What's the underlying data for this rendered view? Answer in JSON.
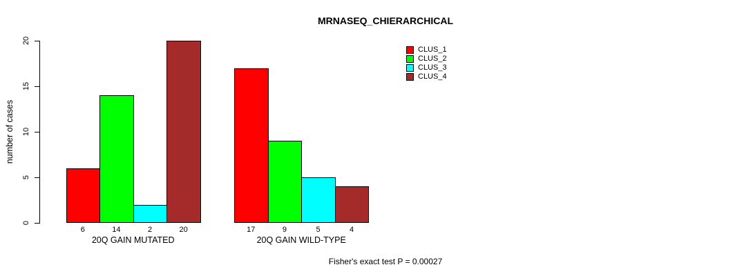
{
  "chart_data": {
    "type": "bar",
    "title": "MRNASEQ_CHIERARCHICAL",
    "ylabel": "number of cases",
    "xlabel": "",
    "caption": "Fisher's exact test P = 0.00027",
    "ylim": [
      0,
      20
    ],
    "yticks": [
      0,
      5,
      10,
      15,
      20
    ],
    "grid": false,
    "legend_position": "top-right",
    "bar_value_labels": true,
    "categories": [
      "20Q GAIN MUTATED",
      "20Q GAIN WILD-TYPE"
    ],
    "series": [
      {
        "name": "CLUS_1",
        "color": "#FF0000",
        "values": [
          6,
          17
        ]
      },
      {
        "name": "CLUS_2",
        "color": "#00FF00",
        "values": [
          14,
          9
        ]
      },
      {
        "name": "CLUS_3",
        "color": "#00FFFF",
        "values": [
          2,
          5
        ]
      },
      {
        "name": "CLUS_4",
        "color": "#A52A2A",
        "values": [
          20,
          4
        ]
      }
    ]
  }
}
